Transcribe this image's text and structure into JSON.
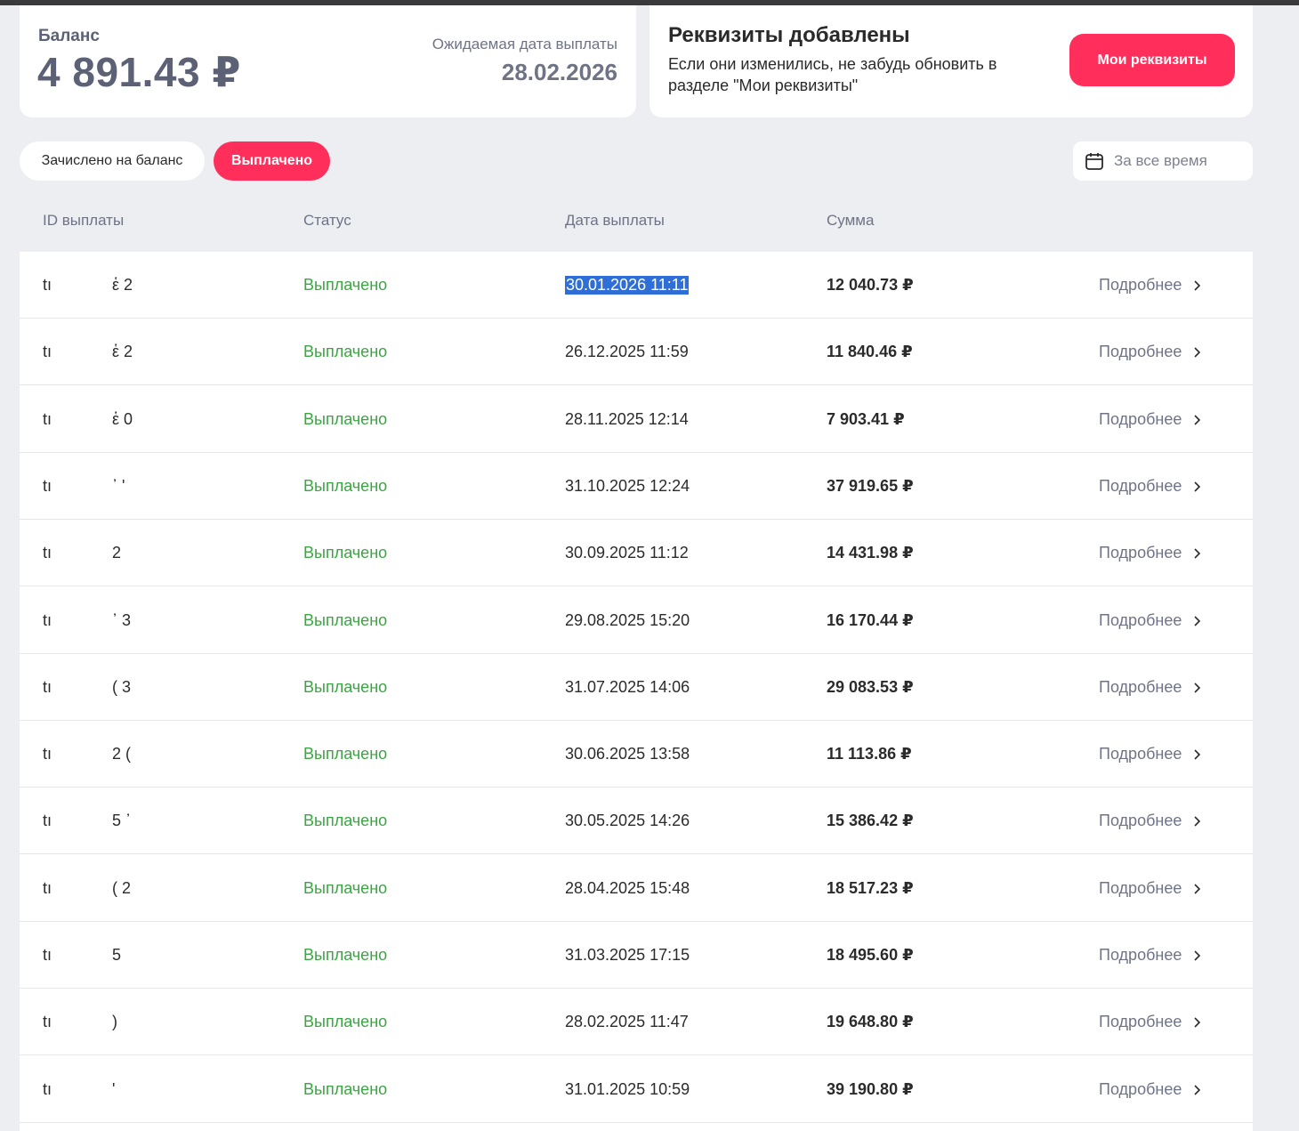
{
  "balance": {
    "label": "Баланс",
    "value": "4 891.43 ₽",
    "payout_label": "Ожидаемая дата выплаты",
    "payout_date": "28.02.2026"
  },
  "requisites": {
    "title": "Реквизиты добавлены",
    "text": "Если они изменились, не забудь обновить в разделе \"Мои реквизиты\"",
    "button_label": "Мои реквизиты"
  },
  "filters": {
    "credited_label": "Зачислено на баланс",
    "paid_label": "Выплачено",
    "date_range": "За все время",
    "date_icon": "calendar-icon"
  },
  "table": {
    "headers": [
      "ID выплаты",
      "Статус",
      "Дата выплаты",
      "Сумма"
    ],
    "more_label": "Подробнее",
    "rows": [
      {
        "id": "tı",
        "id_tail": "ἑ 2",
        "status": "Выплачено",
        "date": "30.01.2026 11:11",
        "amount": "12 040.73 ₽",
        "selected": true
      },
      {
        "id": "tı",
        "id_tail": "ἑ 2",
        "status": "Выплачено",
        "date": "26.12.2025 11:59",
        "amount": "11 840.46 ₽"
      },
      {
        "id": "tı",
        "id_tail": "ἑ 0",
        "status": "Выплачено",
        "date": "28.11.2025 12:14",
        "amount": "7 903.41 ₽"
      },
      {
        "id": "tı",
        "id_tail": "᾽ '",
        "status": "Выплачено",
        "date": "31.10.2025 12:24",
        "amount": "37 919.65 ₽"
      },
      {
        "id": "tı",
        "id_tail": "2",
        "status": "Выплачено",
        "date": "30.09.2025 11:12",
        "amount": "14 431.98 ₽"
      },
      {
        "id": "tı",
        "id_tail": "᾿ 3",
        "status": "Выплачено",
        "date": "29.08.2025 15:20",
        "amount": "16 170.44 ₽"
      },
      {
        "id": "tı",
        "id_tail": "( 3",
        "status": "Выплачено",
        "date": "31.07.2025 14:06",
        "amount": "29 083.53 ₽"
      },
      {
        "id": "tı",
        "id_tail": "2 (",
        "status": "Выплачено",
        "date": "30.06.2025 13:58",
        "amount": "11 113.86 ₽"
      },
      {
        "id": "tı",
        "id_tail": "5 ᾿",
        "status": "Выплачено",
        "date": "30.05.2025 14:26",
        "amount": "15 386.42 ₽"
      },
      {
        "id": "tı",
        "id_tail": "( 2",
        "status": "Выплачено",
        "date": "28.04.2025 15:48",
        "amount": "18 517.23 ₽"
      },
      {
        "id": "tı",
        "id_tail": "5",
        "status": "Выплачено",
        "date": "31.03.2025 17:15",
        "amount": "18 495.60 ₽"
      },
      {
        "id": "tı",
        "id_tail": ")",
        "status": "Выплачено",
        "date": "28.02.2025 11:47",
        "amount": "19 648.80 ₽"
      },
      {
        "id": "tı",
        "id_tail": "'",
        "status": "Выплачено",
        "date": "31.01.2025 10:59",
        "amount": "39 190.80 ₽"
      }
    ]
  },
  "colors": {
    "accent": "#ff2e5b",
    "status_paid": "#3aa542",
    "background": "#eceef2",
    "muted_text": "#6f7385",
    "selection": "#2f6ed6"
  }
}
